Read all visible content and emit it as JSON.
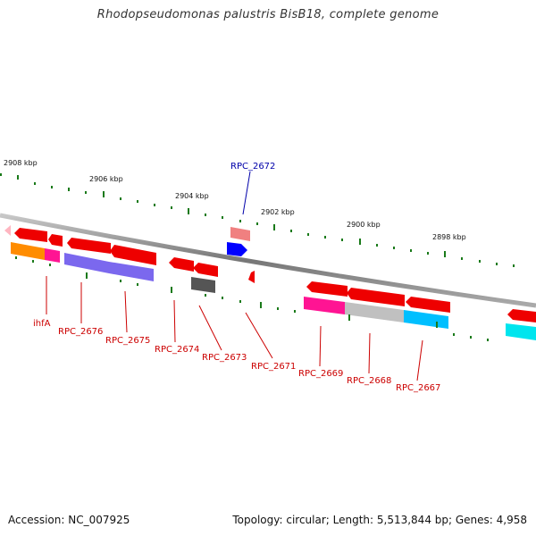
{
  "title": "Rhodopseudomonas palustris BisB18, complete genome",
  "accession": "Accession: NC_007925",
  "footer": "Topology: circular; Length: 5,513,844 bp; Genes: 4,958",
  "kbp_labels": {
    "k2908": "2908 kbp",
    "k2906": "2906 kbp",
    "k2904": "2904 kbp",
    "k2902": "2902 kbp",
    "k2900": "2900 kbp",
    "k2898": "2898 kbp"
  },
  "gene_labels": {
    "ihfA": "ihfA",
    "rpc2676": "RPC_2676",
    "rpc2675": "RPC_2675",
    "rpc2674": "RPC_2674",
    "rpc2673": "RPC_2673",
    "rpc2672": "RPC_2672",
    "rpc2671": "RPC_2671",
    "rpc2669": "RPC_2669",
    "rpc2668": "RPC_2668",
    "rpc2667": "RPC_2667"
  },
  "colors": {
    "backbone": "#888888",
    "tick": "#1a7a1a",
    "gene_red": "#ee0000",
    "label_red": "#cc0000",
    "label_blue": "#0000aa",
    "orange": "#ff8c00",
    "magenta": "#ff1493",
    "slate_blue": "#7b68ee",
    "silver": "#c0c0c0",
    "deep_sky_blue": "#00bfff",
    "cyan": "#00e5ee",
    "dim_gray": "#555555",
    "light_coral": "#f08080",
    "blue": "#0000ff",
    "pink": "#ffb6c1"
  }
}
